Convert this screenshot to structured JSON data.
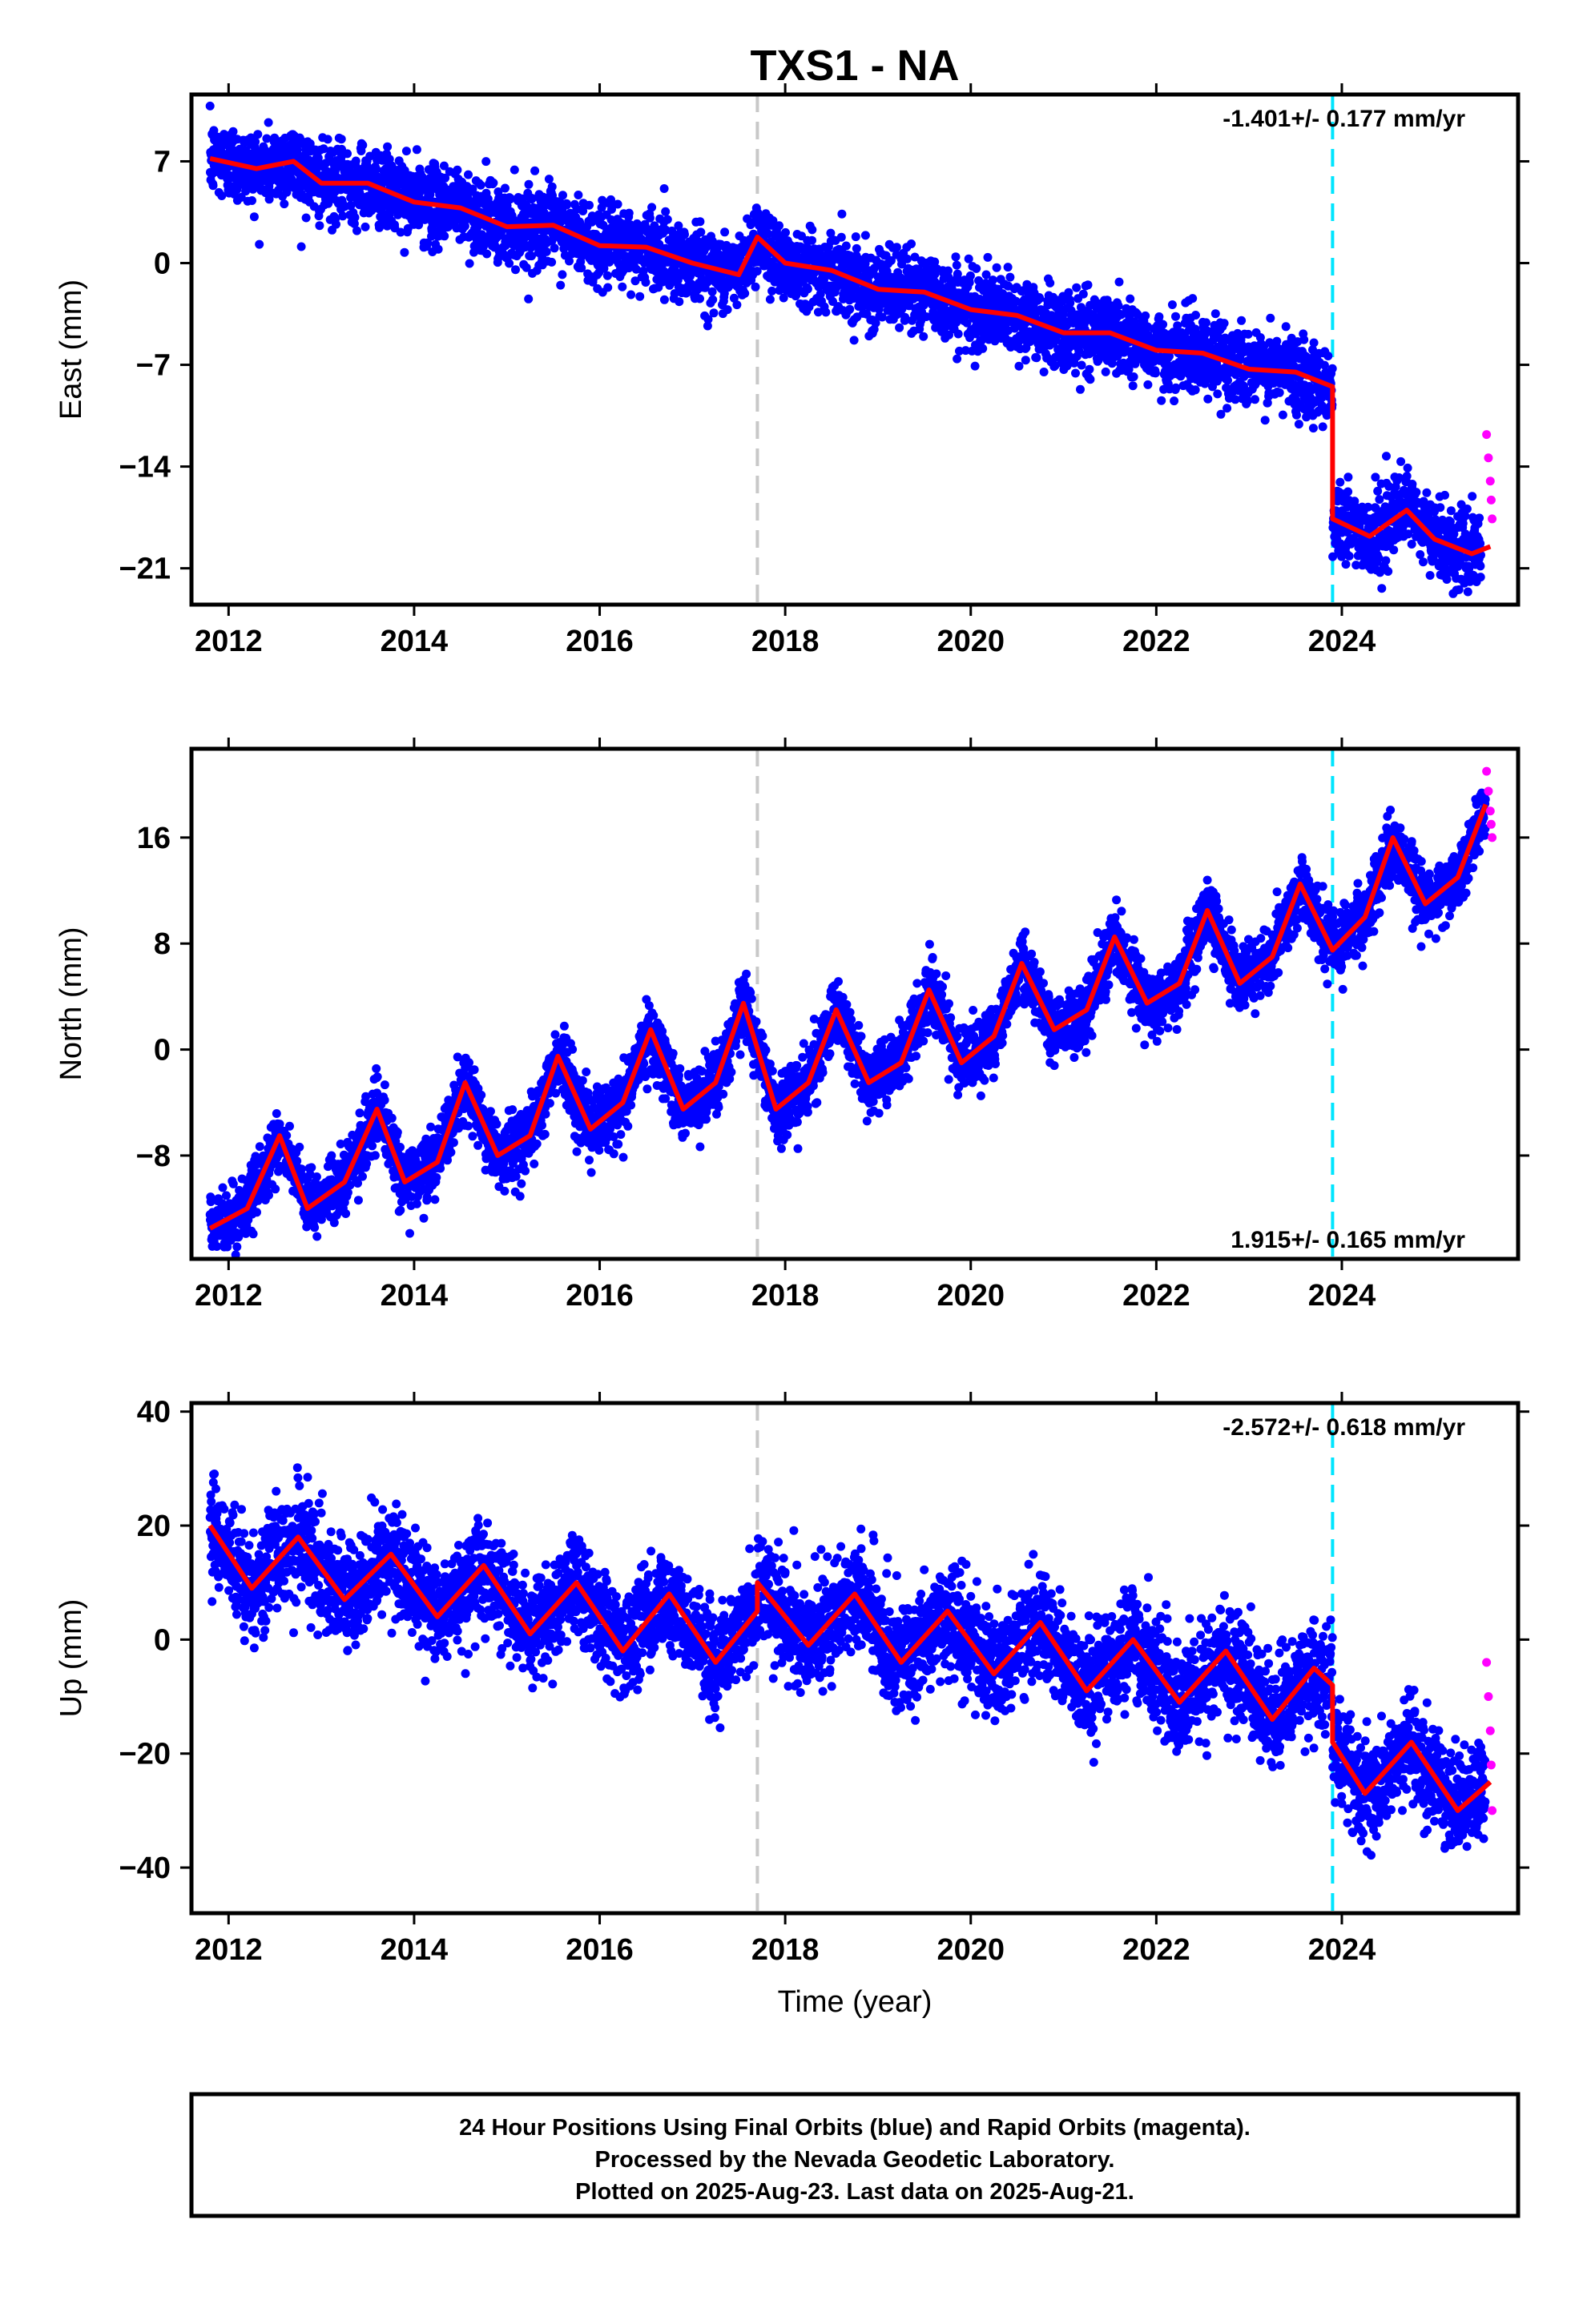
{
  "title": "TXS1 - NA",
  "xlabel": "Time (year)",
  "footer": {
    "line1": "24 Hour Positions Using Final Orbits (blue) and Rapid Orbits (magenta).",
    "line2": "Processed by the Nevada Geodetic Laboratory.",
    "line3": "Plotted on 2025-Aug-23. Last data on 2025-Aug-21."
  },
  "colors": {
    "final_orbits": "#0000ff",
    "rapid_orbits": "#ff00ff",
    "model_fit": "#ff0000",
    "equipment_change": "#c8c8c8",
    "earthquake_offset": "#00e5ff"
  },
  "chart_data": [
    {
      "type": "scatter",
      "panel": "east",
      "ylabel": "East (mm)",
      "rate_label": "-1.401+/- 0.177 mm/yr",
      "xlim": [
        2011.6,
        2025.9
      ],
      "ylim": [
        -23.5,
        11.6
      ],
      "xticks": [
        2012,
        2014,
        2016,
        2018,
        2020,
        2022,
        2024
      ],
      "yticks": [
        7,
        0,
        -7,
        -14,
        -21
      ],
      "grid": false,
      "vlines": [
        {
          "x": 2017.7,
          "kind": "equipment"
        },
        {
          "x": 2023.9,
          "kind": "offset"
        }
      ],
      "final_start": 2011.8,
      "final_end": 2025.5,
      "rapid_end": 2025.62,
      "scatter_sigma": 1.3,
      "model_fit": [
        [
          2011.8,
          7.2
        ],
        [
          2012.3,
          6.5
        ],
        [
          2012.7,
          7.0
        ],
        [
          2013.0,
          5.5
        ],
        [
          2013.5,
          5.5
        ],
        [
          2014.0,
          4.2
        ],
        [
          2014.5,
          3.8
        ],
        [
          2015.0,
          2.5
        ],
        [
          2015.5,
          2.6
        ],
        [
          2016.0,
          1.2
        ],
        [
          2016.5,
          1.1
        ],
        [
          2017.0,
          0.0
        ],
        [
          2017.5,
          -0.8
        ],
        [
          2017.7,
          1.8
        ],
        [
          2018.0,
          0.0
        ],
        [
          2018.5,
          -0.5
        ],
        [
          2019.0,
          -1.8
        ],
        [
          2019.5,
          -2.0
        ],
        [
          2020.0,
          -3.2
        ],
        [
          2020.5,
          -3.6
        ],
        [
          2021.0,
          -4.8
        ],
        [
          2021.5,
          -4.8
        ],
        [
          2022.0,
          -6.0
        ],
        [
          2022.5,
          -6.2
        ],
        [
          2023.0,
          -7.3
        ],
        [
          2023.5,
          -7.5
        ],
        [
          2023.9,
          -8.5
        ],
        [
          2023.9,
          -17.6
        ],
        [
          2024.3,
          -18.8
        ],
        [
          2024.7,
          -17.0
        ],
        [
          2025.0,
          -19.0
        ],
        [
          2025.4,
          -20.0
        ],
        [
          2025.6,
          -19.5
        ]
      ],
      "rapid_points": [
        [
          2025.56,
          -11.8
        ],
        [
          2025.58,
          -13.4
        ],
        [
          2025.6,
          -15.0
        ],
        [
          2025.61,
          -16.3
        ],
        [
          2025.62,
          -17.6
        ]
      ]
    },
    {
      "type": "scatter",
      "panel": "north",
      "ylabel": "North (mm)",
      "rate_label": "1.915+/- 0.165 mm/yr",
      "xlim": [
        2011.6,
        2025.9
      ],
      "ylim": [
        -15.8,
        22.7
      ],
      "xticks": [
        2012,
        2014,
        2016,
        2018,
        2020,
        2022,
        2024
      ],
      "yticks": [
        16,
        8,
        0,
        -8
      ],
      "grid": false,
      "vlines": [
        {
          "x": 2017.7,
          "kind": "equipment"
        },
        {
          "x": 2023.9,
          "kind": "offset"
        }
      ],
      "final_start": 2011.8,
      "final_end": 2025.55,
      "rapid_end": 2025.62,
      "scatter_sigma": 1.2,
      "model_fit": [
        [
          2011.8,
          -13.5
        ],
        [
          2012.2,
          -12.0
        ],
        [
          2012.55,
          -6.5
        ],
        [
          2012.85,
          -12.0
        ],
        [
          2013.25,
          -10.0
        ],
        [
          2013.6,
          -4.5
        ],
        [
          2013.9,
          -10.0
        ],
        [
          2014.25,
          -8.5
        ],
        [
          2014.55,
          -2.5
        ],
        [
          2014.9,
          -8.0
        ],
        [
          2015.25,
          -6.5
        ],
        [
          2015.55,
          -0.5
        ],
        [
          2015.9,
          -6.0
        ],
        [
          2016.25,
          -4.0
        ],
        [
          2016.55,
          1.5
        ],
        [
          2016.9,
          -4.5
        ],
        [
          2017.25,
          -2.5
        ],
        [
          2017.55,
          3.5
        ],
        [
          2017.9,
          -4.5
        ],
        [
          2018.25,
          -2.5
        ],
        [
          2018.55,
          3.0
        ],
        [
          2018.9,
          -2.5
        ],
        [
          2019.25,
          -1.0
        ],
        [
          2019.55,
          4.5
        ],
        [
          2019.9,
          -1.0
        ],
        [
          2020.25,
          1.0
        ],
        [
          2020.55,
          6.5
        ],
        [
          2020.9,
          1.5
        ],
        [
          2021.25,
          3.0
        ],
        [
          2021.55,
          8.5
        ],
        [
          2021.9,
          3.5
        ],
        [
          2022.25,
          5.0
        ],
        [
          2022.55,
          10.5
        ],
        [
          2022.9,
          5.0
        ],
        [
          2023.25,
          7.0
        ],
        [
          2023.55,
          12.5
        ],
        [
          2023.9,
          7.5
        ],
        [
          2024.25,
          10.0
        ],
        [
          2024.55,
          16.0
        ],
        [
          2024.9,
          11.0
        ],
        [
          2025.25,
          13.0
        ],
        [
          2025.55,
          18.5
        ]
      ],
      "rapid_points": [
        [
          2025.56,
          21.0
        ],
        [
          2025.58,
          19.5
        ],
        [
          2025.6,
          18.0
        ],
        [
          2025.61,
          17.0
        ],
        [
          2025.62,
          16.0
        ]
      ]
    },
    {
      "type": "scatter",
      "panel": "up",
      "ylabel": "Up (mm)",
      "rate_label": "-2.572+/- 0.618 mm/yr",
      "xlim": [
        2011.6,
        2025.9
      ],
      "ylim": [
        -48.0,
        41.5
      ],
      "xticks": [
        2012,
        2014,
        2016,
        2018,
        2020,
        2022,
        2024
      ],
      "yticks": [
        40,
        20,
        0,
        -20,
        -40
      ],
      "grid": false,
      "vlines": [
        {
          "x": 2017.7,
          "kind": "equipment"
        },
        {
          "x": 2023.9,
          "kind": "offset"
        }
      ],
      "final_start": 2011.8,
      "final_end": 2025.55,
      "rapid_end": 2025.62,
      "scatter_sigma": 4.5,
      "model_fit": [
        [
          2011.8,
          20.0
        ],
        [
          2012.25,
          9.0
        ],
        [
          2012.75,
          18.0
        ],
        [
          2013.25,
          7.0
        ],
        [
          2013.75,
          15.0
        ],
        [
          2014.25,
          4.0
        ],
        [
          2014.75,
          13.0
        ],
        [
          2015.25,
          1.0
        ],
        [
          2015.75,
          10.0
        ],
        [
          2016.25,
          -2.0
        ],
        [
          2016.75,
          8.0
        ],
        [
          2017.25,
          -4.0
        ],
        [
          2017.7,
          5.0
        ],
        [
          2017.7,
          10.0
        ],
        [
          2018.25,
          -1.0
        ],
        [
          2018.75,
          8.0
        ],
        [
          2019.25,
          -4.0
        ],
        [
          2019.75,
          5.0
        ],
        [
          2020.25,
          -6.0
        ],
        [
          2020.75,
          3.0
        ],
        [
          2021.25,
          -9.0
        ],
        [
          2021.75,
          0.0
        ],
        [
          2022.25,
          -11.0
        ],
        [
          2022.75,
          -2.0
        ],
        [
          2023.25,
          -14.0
        ],
        [
          2023.7,
          -5.0
        ],
        [
          2023.9,
          -8.0
        ],
        [
          2023.9,
          -18.0
        ],
        [
          2024.25,
          -27.0
        ],
        [
          2024.75,
          -18.0
        ],
        [
          2025.25,
          -30.0
        ],
        [
          2025.6,
          -25.0
        ]
      ],
      "rapid_points": [
        [
          2025.56,
          -4.0
        ],
        [
          2025.58,
          -10.0
        ],
        [
          2025.6,
          -16.0
        ],
        [
          2025.61,
          -22.0
        ],
        [
          2025.62,
          -30.0
        ]
      ]
    }
  ]
}
